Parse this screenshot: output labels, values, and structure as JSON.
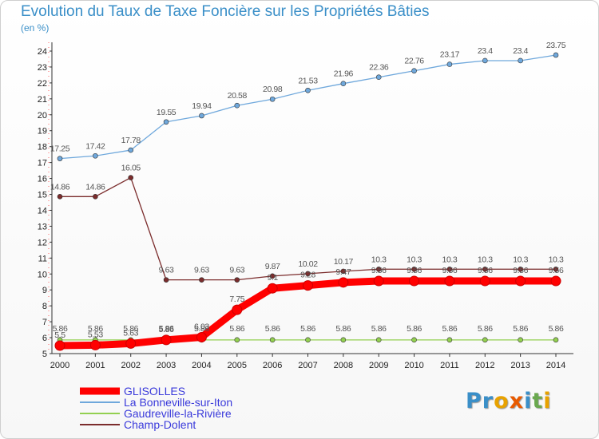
{
  "page": {
    "title": "Evolution du Taux de Taxe Foncière sur les Propriétés Bâties",
    "unit": "(en %)"
  },
  "logo": {
    "text": "Proxiti",
    "letters": [
      "P",
      "r",
      "o",
      "x",
      "i",
      "t",
      "i"
    ],
    "colors": [
      "#3a8fc8",
      "#3a8fc8",
      "#e8a200",
      "#e85a00",
      "#3a8fc8",
      "#6aa84f",
      "#e8a200"
    ]
  },
  "chart_data": {
    "type": "line",
    "x": [
      "2000",
      "2001",
      "2002",
      "2003",
      "2004",
      "2005",
      "2006",
      "2007",
      "2008",
      "2009",
      "2010",
      "2011",
      "2012",
      "2013",
      "2014"
    ],
    "ylim": [
      5,
      24
    ],
    "yticks": [
      5,
      6,
      7,
      8,
      9,
      10,
      11,
      12,
      13,
      14,
      15,
      16,
      17,
      18,
      19,
      20,
      21,
      22,
      23,
      24
    ],
    "grid": false,
    "legend_position": "bottom-left",
    "series": [
      {
        "name": "GLISOLLES",
        "color": "#ff0000",
        "values": [
          5.5,
          5.53,
          5.63,
          5.86,
          6.03,
          7.75,
          9.1,
          9.28,
          9.47,
          9.56,
          9.56,
          9.56,
          9.56,
          9.56,
          9.56
        ],
        "labels": [
          "5.5",
          "5.53",
          "5.63",
          "5.86",
          "6.03",
          "7.75",
          "9.1",
          "9.28",
          "9.47",
          "9.56",
          "9.56",
          "9.56",
          "9.56",
          "9.56",
          "9.56"
        ]
      },
      {
        "name": "La Bonneville-sur-Iton",
        "color": "#6fa8dc",
        "values": [
          17.25,
          17.42,
          17.78,
          19.55,
          19.94,
          20.58,
          20.98,
          21.53,
          21.96,
          22.36,
          22.76,
          23.17,
          23.4,
          23.4,
          23.75
        ],
        "labels": [
          "17.25",
          "17.42",
          "17.78",
          "19.55",
          "19.94",
          "20.58",
          "20.98",
          "21.53",
          "21.96",
          "22.36",
          "22.76",
          "23.17",
          "23.4",
          "23.4",
          "23.75"
        ]
      },
      {
        "name": "Gaudreville-la-Rivière",
        "color": "#93d050",
        "values": [
          5.86,
          5.86,
          5.86,
          5.86,
          5.86,
          5.86,
          5.86,
          5.86,
          5.86,
          5.86,
          5.86,
          5.86,
          5.86,
          5.86,
          5.86
        ],
        "labels": [
          "5.86",
          "5.86",
          "5.86",
          "5.86",
          "5.86",
          "5.86",
          "5.86",
          "5.86",
          "5.86",
          "5.86",
          "5.86",
          "5.86",
          "5.86",
          "5.86",
          "5.86"
        ]
      },
      {
        "name": "Champ-Dolent",
        "color": "#7b2c2c",
        "values": [
          14.86,
          14.86,
          16.05,
          9.63,
          9.63,
          9.63,
          9.87,
          10.02,
          10.17,
          10.3,
          10.3,
          10.3,
          10.3,
          10.3,
          10.3
        ],
        "labels": [
          "14.86",
          "14.86",
          "16.05",
          "9.63",
          "9.63",
          "9.63",
          "9.87",
          "10.02",
          "10.17",
          "10.3",
          "10.3",
          "10.3",
          "10.3",
          "10.3",
          "10.3"
        ]
      }
    ]
  }
}
